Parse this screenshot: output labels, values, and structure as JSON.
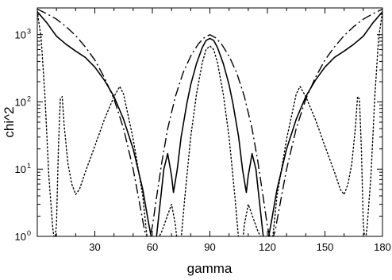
{
  "chart_data": {
    "type": "line",
    "xlabel": "gamma",
    "ylabel": "chi^2",
    "xlim": [
      0,
      180
    ],
    "ylim": [
      1,
      2500
    ],
    "yscale": "log",
    "x_ticks": [
      30,
      60,
      90,
      120,
      150,
      180
    ],
    "y_ticks": [
      {
        "base": "10",
        "exp": "0",
        "value": 1
      },
      {
        "base": "10",
        "exp": "1",
        "value": 10
      },
      {
        "base": "10",
        "exp": "2",
        "value": 100
      },
      {
        "base": "10",
        "exp": "3",
        "value": 1000
      }
    ],
    "grid": false,
    "legend": "none",
    "series": [
      {
        "style": "solid",
        "points": [
          [
            0,
            2200
          ],
          [
            5,
            1500
          ],
          [
            10,
            950
          ],
          [
            15,
            720
          ],
          [
            20,
            570
          ],
          [
            25,
            460
          ],
          [
            30,
            330
          ],
          [
            35,
            210
          ],
          [
            40,
            120
          ],
          [
            45,
            55
          ],
          [
            50,
            20
          ],
          [
            55,
            5
          ],
          [
            58,
            1.6
          ],
          [
            60,
            0.8
          ],
          [
            62,
            0.9
          ],
          [
            64,
            3
          ],
          [
            66,
            10
          ],
          [
            68,
            17
          ],
          [
            70,
            8
          ],
          [
            71,
            4.5
          ],
          [
            73,
            10
          ],
          [
            75,
            30
          ],
          [
            78,
            95
          ],
          [
            80,
            180
          ],
          [
            83,
            370
          ],
          [
            86,
            640
          ],
          [
            88,
            820
          ],
          [
            90,
            880
          ],
          [
            92,
            820
          ],
          [
            94,
            640
          ],
          [
            97,
            370
          ],
          [
            100,
            180
          ],
          [
            102,
            95
          ],
          [
            105,
            30
          ],
          [
            107,
            10
          ],
          [
            109,
            4.5
          ],
          [
            110,
            8
          ],
          [
            112,
            17
          ],
          [
            114,
            10
          ],
          [
            116,
            3
          ],
          [
            118,
            0.9
          ],
          [
            120,
            0.8
          ],
          [
            122,
            1.6
          ],
          [
            125,
            5
          ],
          [
            130,
            20
          ],
          [
            135,
            55
          ],
          [
            140,
            120
          ],
          [
            145,
            210
          ],
          [
            150,
            330
          ],
          [
            155,
            460
          ],
          [
            160,
            570
          ],
          [
            165,
            720
          ],
          [
            170,
            950
          ],
          [
            175,
            1500
          ],
          [
            180,
            2200
          ]
        ]
      },
      {
        "style": "dash-dot",
        "points": [
          [
            0,
            2400
          ],
          [
            5,
            2050
          ],
          [
            10,
            1700
          ],
          [
            15,
            1320
          ],
          [
            20,
            970
          ],
          [
            25,
            660
          ],
          [
            30,
            420
          ],
          [
            35,
            230
          ],
          [
            40,
            110
          ],
          [
            45,
            40
          ],
          [
            50,
            10
          ],
          [
            53,
            3.5
          ],
          [
            56,
            1.2
          ],
          [
            58,
            0.8
          ],
          [
            60,
            1.4
          ],
          [
            62,
            3.5
          ],
          [
            65,
            13
          ],
          [
            68,
            40
          ],
          [
            72,
            120
          ],
          [
            76,
            270
          ],
          [
            80,
            480
          ],
          [
            84,
            730
          ],
          [
            87,
            900
          ],
          [
            90,
            1000
          ],
          [
            93,
            900
          ],
          [
            96,
            730
          ],
          [
            100,
            480
          ],
          [
            104,
            270
          ],
          [
            108,
            120
          ],
          [
            112,
            40
          ],
          [
            115,
            13
          ],
          [
            118,
            3.5
          ],
          [
            120,
            1.4
          ],
          [
            122,
            0.8
          ],
          [
            124,
            1.2
          ],
          [
            127,
            3.5
          ],
          [
            130,
            10
          ],
          [
            135,
            40
          ],
          [
            140,
            110
          ],
          [
            145,
            230
          ],
          [
            150,
            420
          ],
          [
            155,
            660
          ],
          [
            160,
            970
          ],
          [
            165,
            1320
          ],
          [
            170,
            1700
          ],
          [
            175,
            2050
          ],
          [
            180,
            2400
          ]
        ]
      },
      {
        "style": "dotted",
        "points": [
          [
            0,
            2200
          ],
          [
            2,
            900
          ],
          [
            4,
            120
          ],
          [
            6,
            8
          ],
          [
            8,
            1.4
          ],
          [
            9,
            0.8
          ],
          [
            10,
            1.5
          ],
          [
            11,
            20
          ],
          [
            12,
            110
          ],
          [
            13,
            120
          ],
          [
            14,
            45
          ],
          [
            16,
            12
          ],
          [
            18,
            6
          ],
          [
            20,
            4.2
          ],
          [
            22,
            5
          ],
          [
            25,
            9
          ],
          [
            30,
            22
          ],
          [
            35,
            55
          ],
          [
            40,
            120
          ],
          [
            43,
            170
          ],
          [
            45,
            130
          ],
          [
            50,
            28
          ],
          [
            55,
            4
          ],
          [
            57,
            1.1
          ],
          [
            58,
            0.8
          ],
          [
            62,
            0.8
          ],
          [
            65,
            1.2
          ],
          [
            70,
            3
          ],
          [
            72,
            1.5
          ],
          [
            73,
            0.8
          ],
          [
            75,
            0.9
          ],
          [
            77,
            4
          ],
          [
            80,
            30
          ],
          [
            83,
            130
          ],
          [
            86,
            380
          ],
          [
            88,
            600
          ],
          [
            90,
            680
          ],
          [
            92,
            600
          ],
          [
            94,
            380
          ],
          [
            97,
            130
          ],
          [
            100,
            30
          ],
          [
            103,
            4
          ],
          [
            105,
            0.9
          ],
          [
            107,
            0.8
          ],
          [
            108,
            1.5
          ],
          [
            110,
            3
          ],
          [
            115,
            1.2
          ],
          [
            118,
            0.8
          ],
          [
            122,
            0.8
          ],
          [
            123,
            1.1
          ],
          [
            125,
            4
          ],
          [
            130,
            28
          ],
          [
            135,
            130
          ],
          [
            137,
            170
          ],
          [
            140,
            120
          ],
          [
            145,
            55
          ],
          [
            150,
            22
          ],
          [
            155,
            9
          ],
          [
            158,
            5
          ],
          [
            160,
            4.2
          ],
          [
            162,
            6
          ],
          [
            164,
            12
          ],
          [
            166,
            45
          ],
          [
            167,
            120
          ],
          [
            168,
            110
          ],
          [
            169,
            20
          ],
          [
            170,
            1.5
          ],
          [
            171,
            0.8
          ],
          [
            172,
            1.4
          ],
          [
            174,
            8
          ],
          [
            176,
            120
          ],
          [
            178,
            900
          ],
          [
            180,
            2200
          ]
        ]
      }
    ]
  }
}
